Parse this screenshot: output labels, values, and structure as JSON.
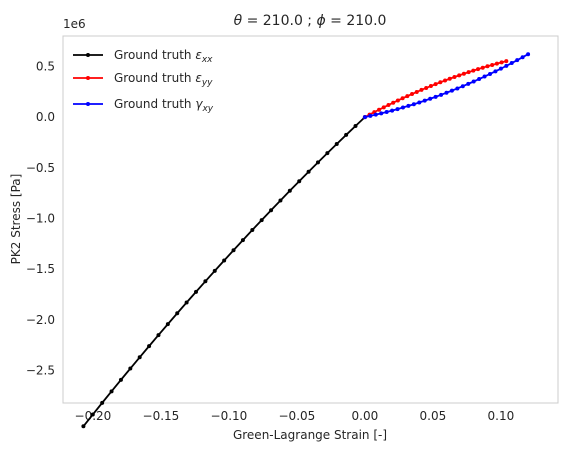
{
  "chart_data": {
    "type": "line",
    "title_parts": {
      "theta_symbol": "θ",
      "theta_text": " = 210.0 ; ",
      "phi_symbol": "ϕ",
      "phi_text": " = 210.0"
    },
    "xlabel": "Green-Lagrange Strain [-]",
    "ylabel": "PK2 Stress [Pa]",
    "y_offset_label": "1e6",
    "xlim": [
      -0.222,
      0.142
    ],
    "ylim": [
      -2.82,
      0.8
    ],
    "x_ticks": [
      -0.2,
      -0.15,
      -0.1,
      -0.05,
      0.0,
      0.05,
      0.1
    ],
    "x_tick_labels": [
      "−0.20",
      "−0.15",
      "−0.10",
      "−0.05",
      "0.00",
      "0.05",
      "0.10"
    ],
    "y_ticks": [
      -2.5,
      -2.0,
      -1.5,
      -1.0,
      -0.5,
      0.0,
      0.5
    ],
    "y_tick_labels": [
      "−2.5",
      "−2.0",
      "−1.5",
      "−1.0",
      "−0.5",
      "0.0",
      "0.5"
    ],
    "grid": false,
    "legend_position": "top-left",
    "series": [
      {
        "legend_prefix": "Ground truth ",
        "legend_symbol": "ε",
        "legend_subscript": "xx",
        "color": "#000000",
        "x_start": 0.0,
        "x_end": -0.207,
        "a": 12.6,
        "b": -10.3,
        "n": 30
      },
      {
        "legend_prefix": "Ground truth ",
        "legend_symbol": "ε",
        "legend_subscript": "yy",
        "color": "#ff0000",
        "x_start": 0.0,
        "x_end": 0.104,
        "a": 7.2,
        "b": -18.2,
        "n": 30
      },
      {
        "legend_prefix": "Ground truth ",
        "legend_symbol": "γ",
        "legend_subscript": "xy",
        "color": "#0000ff",
        "x_start": 0.0,
        "x_end": 0.12,
        "a": 2.83,
        "b": 19.5,
        "n": 30
      }
    ]
  }
}
